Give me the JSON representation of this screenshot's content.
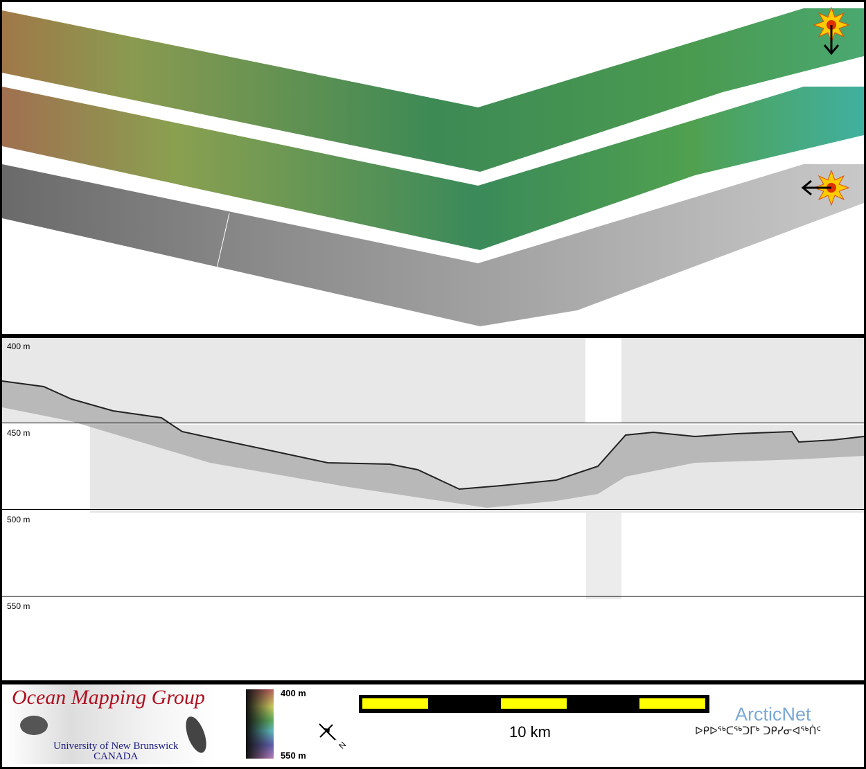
{
  "profile": {
    "depth_labels": [
      "400 m",
      "450 m",
      "500 m",
      "550 m"
    ]
  },
  "footer": {
    "logo_title": "Ocean Mapping Group",
    "logo_university": "University of New Brunswick",
    "logo_country": "CANADA",
    "colorbar": {
      "top_label": "400 m",
      "bottom_label": "550 m",
      "colors": [
        "#c06060",
        "#d0d060",
        "#60b060",
        "#60c0c0",
        "#6060b0",
        "#c080c0"
      ]
    },
    "north_arrow_label": "N",
    "scale_label": "10 km",
    "partner_name": "ArcticNet",
    "partner_syllabics": "ᐅᑭᐅᖅᑕᖅᑐᒥᒃ ᑐᑭᓯᓂᐊᖅᑏᑦ"
  },
  "colors": {
    "scale_yellow": "#ffff00",
    "marker_sun": "#ffcc00"
  }
}
